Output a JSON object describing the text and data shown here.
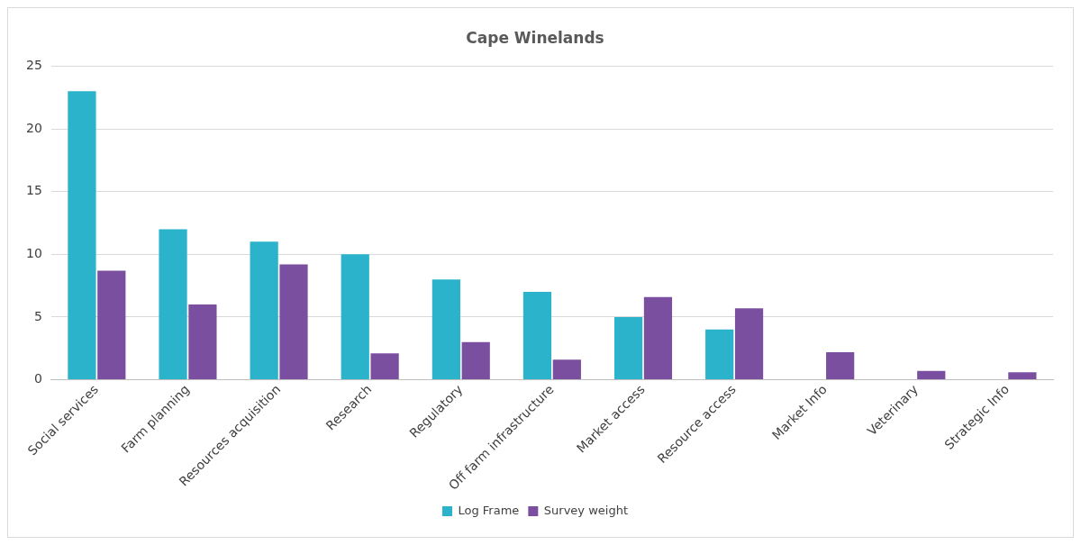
{
  "chart_data": {
    "type": "bar",
    "title": "Cape Winelands",
    "categories": [
      "Social services",
      "Farm planning",
      "Resources acquisition",
      "Research",
      "Regulatory",
      "Off farm infrastructure",
      "Market access",
      "Resource access",
      "Market Info",
      "Veterinary",
      "Strategic Info"
    ],
    "series": [
      {
        "name": "Log Frame",
        "color": "#2bb3cc",
        "values": [
          23,
          12,
          11,
          10,
          8,
          7,
          5,
          4,
          0,
          0,
          0
        ]
      },
      {
        "name": "Survey weight",
        "color": "#7b4fa0",
        "values": [
          8.7,
          6.0,
          9.2,
          2.1,
          3.0,
          1.6,
          6.6,
          5.7,
          2.2,
          0.7,
          0.6
        ]
      }
    ],
    "ylim": [
      0,
      25
    ],
    "yticks": [
      0,
      5,
      10,
      15,
      20,
      25
    ],
    "grid": "y",
    "legend": "bottom"
  }
}
